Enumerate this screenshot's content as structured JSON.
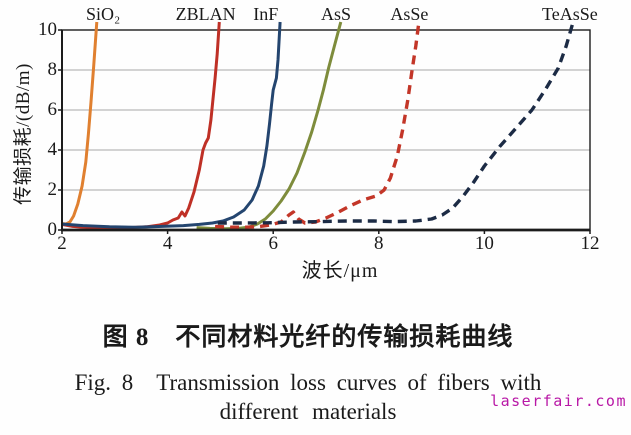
{
  "figure": {
    "caption_zh": "图 8　不同材料光纤的传输损耗曲线",
    "caption_en_line1": "Fig. 8　Transmission loss curves of fibers with",
    "caption_en_line2": "different materials",
    "watermark": "laserfair.com"
  },
  "chart_data": {
    "type": "line",
    "title": "",
    "xlabel": "波长/μm",
    "ylabel": "传输损耗/(dB/m)",
    "xlim": [
      2,
      12
    ],
    "ylim": [
      0,
      10
    ],
    "x_ticks": [
      2,
      4,
      6,
      8,
      10,
      12
    ],
    "y_ticks": [
      0,
      2,
      4,
      6,
      8,
      10
    ],
    "grid": "horizontal",
    "grid_color": "#a8a8a8",
    "axis_color": "#1c1c1c",
    "legend_position": "labels-above-plot",
    "series": [
      {
        "name": "SiO₂",
        "color": "#E08030",
        "style": "solid",
        "label_x": 2.78,
        "points": [
          [
            2.0,
            0.32
          ],
          [
            2.08,
            0.3
          ],
          [
            2.15,
            0.4
          ],
          [
            2.22,
            0.7
          ],
          [
            2.3,
            1.3
          ],
          [
            2.38,
            2.2
          ],
          [
            2.45,
            3.4
          ],
          [
            2.5,
            4.8
          ],
          [
            2.55,
            6.4
          ],
          [
            2.6,
            8.2
          ],
          [
            2.66,
            10.4
          ]
        ]
      },
      {
        "name": "ZBLAN",
        "color": "#BF3026",
        "style": "solid",
        "label_x": 4.72,
        "points": [
          [
            2.0,
            0.28
          ],
          [
            2.2,
            0.18
          ],
          [
            2.5,
            0.12
          ],
          [
            2.9,
            0.1
          ],
          [
            3.3,
            0.12
          ],
          [
            3.6,
            0.16
          ],
          [
            3.85,
            0.25
          ],
          [
            4.0,
            0.35
          ],
          [
            4.1,
            0.5
          ],
          [
            4.2,
            0.6
          ],
          [
            4.27,
            0.9
          ],
          [
            4.33,
            0.7
          ],
          [
            4.4,
            1.1
          ],
          [
            4.5,
            1.9
          ],
          [
            4.6,
            3.0
          ],
          [
            4.67,
            4.0
          ],
          [
            4.72,
            4.35
          ],
          [
            4.77,
            4.6
          ],
          [
            4.82,
            5.5
          ],
          [
            4.87,
            6.8
          ],
          [
            4.9,
            7.6
          ],
          [
            4.94,
            8.8
          ],
          [
            4.98,
            10.4
          ]
        ]
      },
      {
        "name": "InF",
        "color": "#24456F",
        "style": "solid",
        "label_x": 5.86,
        "points": [
          [
            2.0,
            0.3
          ],
          [
            2.4,
            0.22
          ],
          [
            2.9,
            0.16
          ],
          [
            3.4,
            0.14
          ],
          [
            3.9,
            0.18
          ],
          [
            4.3,
            0.22
          ],
          [
            4.6,
            0.28
          ],
          [
            4.85,
            0.35
          ],
          [
            5.05,
            0.45
          ],
          [
            5.25,
            0.65
          ],
          [
            5.45,
            1.0
          ],
          [
            5.6,
            1.5
          ],
          [
            5.72,
            2.2
          ],
          [
            5.82,
            3.2
          ],
          [
            5.88,
            4.2
          ],
          [
            5.93,
            5.3
          ],
          [
            5.97,
            6.3
          ],
          [
            6.0,
            7.0
          ],
          [
            6.03,
            7.3
          ],
          [
            6.06,
            7.6
          ],
          [
            6.09,
            8.5
          ],
          [
            6.13,
            10.4
          ]
        ]
      },
      {
        "name": "AsS",
        "color": "#7E8C3C",
        "style": "solid",
        "label_x": 7.19,
        "points": [
          [
            4.55,
            0.12
          ],
          [
            4.8,
            0.08
          ],
          [
            5.1,
            0.06
          ],
          [
            5.35,
            0.08
          ],
          [
            5.55,
            0.15
          ],
          [
            5.7,
            0.3
          ],
          [
            5.85,
            0.55
          ],
          [
            6.0,
            0.95
          ],
          [
            6.15,
            1.45
          ],
          [
            6.3,
            2.05
          ],
          [
            6.45,
            2.85
          ],
          [
            6.6,
            3.9
          ],
          [
            6.73,
            4.9
          ],
          [
            6.85,
            6.0
          ],
          [
            6.95,
            7.0
          ],
          [
            7.05,
            8.1
          ],
          [
            7.16,
            9.2
          ],
          [
            7.28,
            10.4
          ]
        ]
      },
      {
        "name": "AsSe",
        "color": "#C33628",
        "style": "dashed",
        "label_x": 8.58,
        "points": [
          [
            4.9,
            0.18
          ],
          [
            5.2,
            0.14
          ],
          [
            5.5,
            0.14
          ],
          [
            5.75,
            0.18
          ],
          [
            5.95,
            0.25
          ],
          [
            6.15,
            0.4
          ],
          [
            6.3,
            0.75
          ],
          [
            6.38,
            0.9
          ],
          [
            6.48,
            0.55
          ],
          [
            6.6,
            0.35
          ],
          [
            6.8,
            0.4
          ],
          [
            7.0,
            0.6
          ],
          [
            7.2,
            0.85
          ],
          [
            7.45,
            1.2
          ],
          [
            7.7,
            1.5
          ],
          [
            7.95,
            1.7
          ],
          [
            8.1,
            2.0
          ],
          [
            8.22,
            2.6
          ],
          [
            8.35,
            3.7
          ],
          [
            8.45,
            5.0
          ],
          [
            8.55,
            6.5
          ],
          [
            8.63,
            8.0
          ],
          [
            8.7,
            9.2
          ],
          [
            8.76,
            10.4
          ]
        ]
      },
      {
        "name": "TeAsSe",
        "color": "#1C2B45",
        "style": "dashed",
        "label_x": 11.62,
        "points": [
          [
            4.95,
            0.35
          ],
          [
            5.4,
            0.35
          ],
          [
            5.9,
            0.36
          ],
          [
            6.4,
            0.4
          ],
          [
            6.9,
            0.42
          ],
          [
            7.4,
            0.45
          ],
          [
            7.9,
            0.45
          ],
          [
            8.3,
            0.42
          ],
          [
            8.7,
            0.45
          ],
          [
            9.0,
            0.55
          ],
          [
            9.2,
            0.75
          ],
          [
            9.4,
            1.1
          ],
          [
            9.6,
            1.7
          ],
          [
            9.8,
            2.4
          ],
          [
            10.0,
            3.2
          ],
          [
            10.3,
            4.2
          ],
          [
            10.6,
            5.1
          ],
          [
            10.9,
            6.0
          ],
          [
            11.15,
            7.0
          ],
          [
            11.4,
            8.1
          ],
          [
            11.55,
            9.2
          ],
          [
            11.68,
            10.4
          ]
        ]
      }
    ]
  }
}
